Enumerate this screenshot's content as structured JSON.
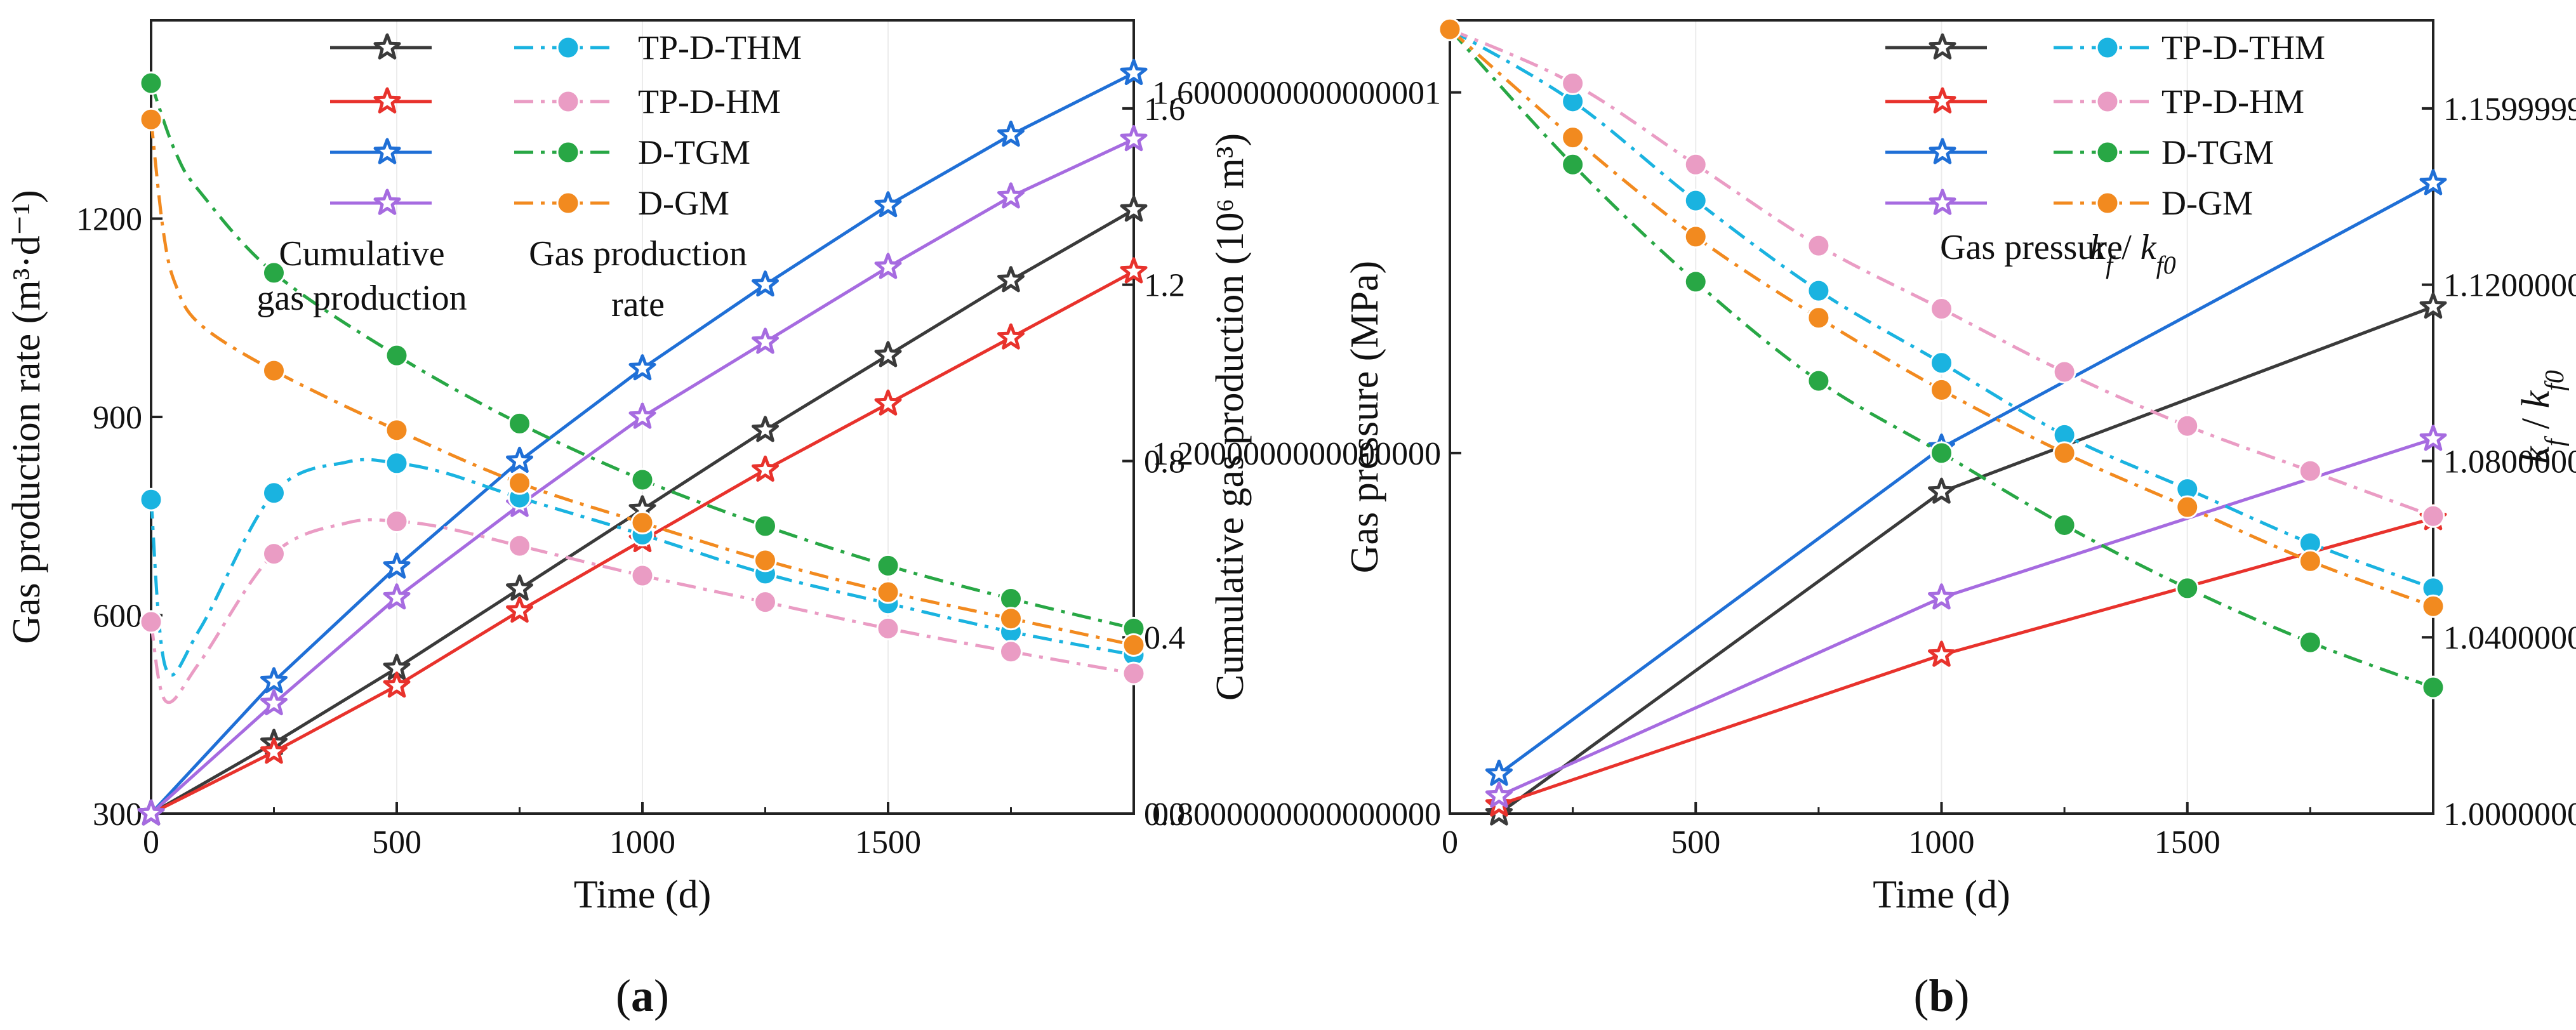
{
  "colors": {
    "black": "#3a3a3a",
    "red": "#e8322c",
    "blue": "#1f6fd6",
    "purple": "#a66be0",
    "cyan": "#1ab3e0",
    "pink": "#ea9cc4",
    "green": "#28a745",
    "orange": "#f28a1f"
  },
  "chart_data": [
    {
      "type": "line",
      "panel_label": "(a)",
      "xlabel": "Time (d)",
      "ylabel": "Gas production rate (m³·d⁻¹)",
      "y2label": "Cumulative gas production (10⁶ m³)",
      "xlim": [
        0,
        2000
      ],
      "ylim": [
        300,
        1500
      ],
      "y2lim": [
        0,
        1.8
      ],
      "xticks": [
        0,
        500,
        1000,
        1500
      ],
      "yticks": [
        300,
        600,
        900,
        1200
      ],
      "y2ticks": [
        0.0,
        0.4,
        0.8,
        1.2,
        1.6
      ],
      "annotations": [
        {
          "lines": [
            "Cumulative",
            "gas production"
          ]
        },
        {
          "lines": [
            "Gas production",
            "rate"
          ]
        }
      ],
      "legend": {
        "position": "top-center",
        "entries": [
          {
            "label": "",
            "color": "black",
            "marker": "star",
            "dash": "solid"
          },
          {
            "label": "",
            "color": "red",
            "marker": "star",
            "dash": "solid"
          },
          {
            "label": "",
            "color": "blue",
            "marker": "star",
            "dash": "solid"
          },
          {
            "label": "",
            "color": "purple",
            "marker": "star",
            "dash": "solid"
          },
          {
            "label": "TP-D-THM",
            "color": "cyan",
            "marker": "circle",
            "dash": "dashdot"
          },
          {
            "label": "TP-D-HM",
            "color": "pink",
            "marker": "circle",
            "dash": "dashdot"
          },
          {
            "label": "D-TGM",
            "color": "green",
            "marker": "circle",
            "dash": "dashdot"
          },
          {
            "label": "D-GM",
            "color": "orange",
            "marker": "circle",
            "dash": "dashdot"
          }
        ]
      },
      "series": [
        {
          "color": "black",
          "marker": "star",
          "dash": "solid",
          "axis": "y2",
          "x": [
            0,
            250,
            500,
            750,
            1000,
            1250,
            1500,
            1750,
            2000
          ],
          "values": [
            0,
            0.16,
            0.33,
            0.51,
            0.69,
            0.87,
            1.04,
            1.21,
            1.37
          ]
        },
        {
          "color": "red",
          "marker": "star",
          "dash": "solid",
          "axis": "y2",
          "x": [
            0,
            250,
            500,
            750,
            1000,
            1250,
            1500,
            1750,
            2000
          ],
          "values": [
            0,
            0.14,
            0.29,
            0.46,
            0.62,
            0.78,
            0.93,
            1.08,
            1.23
          ]
        },
        {
          "color": "blue",
          "marker": "star",
          "dash": "solid",
          "axis": "y2",
          "x": [
            0,
            250,
            500,
            750,
            1000,
            1250,
            1500,
            1750,
            2000
          ],
          "values": [
            0,
            0.3,
            0.56,
            0.8,
            1.01,
            1.2,
            1.38,
            1.54,
            1.68
          ]
        },
        {
          "color": "purple",
          "marker": "star",
          "dash": "solid",
          "axis": "y2",
          "x": [
            0,
            250,
            500,
            750,
            1000,
            1250,
            1500,
            1750,
            2000
          ],
          "values": [
            0,
            0.25,
            0.49,
            0.7,
            0.9,
            1.07,
            1.24,
            1.4,
            1.53
          ]
        },
        {
          "color": "cyan",
          "marker": "circle",
          "dash": "dashdot",
          "axis": "y",
          "x": [
            0,
            30,
            100,
            250,
            400,
            500,
            600,
            750,
            1000,
            1250,
            1500,
            1750,
            2000
          ],
          "values": [
            775,
            520,
            580,
            785,
            832,
            830,
            815,
            778,
            722,
            663,
            618,
            575,
            540
          ],
          "markers_x": [
            0,
            250,
            500,
            750,
            1000,
            1250,
            1500,
            1750,
            2000
          ]
        },
        {
          "color": "pink",
          "marker": "circle",
          "dash": "dashdot",
          "axis": "y",
          "x": [
            0,
            30,
            100,
            250,
            400,
            500,
            600,
            750,
            1000,
            1250,
            1500,
            1750,
            2000
          ],
          "values": [
            590,
            470,
            530,
            693,
            740,
            742,
            732,
            705,
            660,
            620,
            580,
            545,
            512
          ],
          "markers_x": [
            0,
            250,
            500,
            750,
            1000,
            1250,
            1500,
            1750,
            2000
          ]
        },
        {
          "color": "green",
          "marker": "circle",
          "dash": "dashdot",
          "axis": "y",
          "x": [
            0,
            50,
            100,
            250,
            500,
            750,
            1000,
            1250,
            1500,
            1750,
            2000
          ],
          "values": [
            1405,
            1300,
            1240,
            1118,
            993,
            890,
            805,
            735,
            675,
            625,
            580
          ],
          "markers_x": [
            0,
            250,
            500,
            750,
            1000,
            1250,
            1500,
            1750,
            2000
          ]
        },
        {
          "color": "orange",
          "marker": "circle",
          "dash": "dashdot",
          "axis": "y",
          "x": [
            0,
            25,
            50,
            100,
            250,
            500,
            750,
            1000,
            1250,
            1500,
            1750,
            2000
          ],
          "values": [
            1350,
            1180,
            1100,
            1040,
            970,
            880,
            800,
            740,
            683,
            635,
            595,
            555
          ],
          "markers_x": [
            0,
            250,
            500,
            750,
            1000,
            1250,
            1500,
            1750,
            2000
          ]
        }
      ]
    },
    {
      "type": "line",
      "panel_label": "(b)",
      "xlabel": "Time (d)",
      "ylabel": "Gas pressure (MPa)",
      "y2label": "k_f / k_f0",
      "xlim": [
        0,
        2000
      ],
      "ylim": [
        0.8,
        1.68
      ],
      "y2lim": [
        1.0,
        1.18
      ],
      "xticks": [
        0,
        500,
        1000,
        1500
      ],
      "yticks": [
        0.8,
        1.2,
        1.6
      ],
      "y2ticks": [
        1.0,
        1.04,
        1.08,
        1.12,
        1.16
      ],
      "annotations": [
        {
          "lines": [
            "Gas pressure"
          ]
        },
        {
          "lines": [
            "k_f / k_f0"
          ]
        }
      ],
      "legend": {
        "position": "top-right",
        "entries": [
          {
            "label": "",
            "color": "black",
            "marker": "star",
            "dash": "solid"
          },
          {
            "label": "",
            "color": "red",
            "marker": "star",
            "dash": "solid"
          },
          {
            "label": "",
            "color": "blue",
            "marker": "star",
            "dash": "solid"
          },
          {
            "label": "",
            "color": "purple",
            "marker": "star",
            "dash": "solid"
          },
          {
            "label": "TP-D-THM",
            "color": "cyan",
            "marker": "circle",
            "dash": "dashdot"
          },
          {
            "label": "TP-D-HM",
            "color": "pink",
            "marker": "circle",
            "dash": "dashdot"
          },
          {
            "label": "D-TGM",
            "color": "green",
            "marker": "circle",
            "dash": "dashdot"
          },
          {
            "label": "D-GM",
            "color": "orange",
            "marker": "circle",
            "dash": "dashdot"
          }
        ]
      },
      "series": [
        {
          "color": "black",
          "marker": "star",
          "dash": "solid",
          "axis": "y2",
          "x": [
            100,
            1000,
            2000
          ],
          "values": [
            1.0,
            1.073,
            1.115
          ]
        },
        {
          "color": "red",
          "marker": "star",
          "dash": "solid",
          "axis": "y2",
          "x": [
            100,
            1000,
            2000
          ],
          "values": [
            1.002,
            1.036,
            1.067
          ]
        },
        {
          "color": "blue",
          "marker": "star",
          "dash": "solid",
          "axis": "y2",
          "x": [
            100,
            1000,
            2000
          ],
          "values": [
            1.009,
            1.083,
            1.143
          ]
        },
        {
          "color": "purple",
          "marker": "star",
          "dash": "solid",
          "axis": "y2",
          "x": [
            100,
            1000,
            2000
          ],
          "values": [
            1.004,
            1.049,
            1.085
          ]
        },
        {
          "color": "cyan",
          "marker": "circle",
          "dash": "dashdot",
          "axis": "y",
          "x": [
            0,
            250,
            500,
            750,
            1000,
            1250,
            1500,
            1750,
            2000
          ],
          "values": [
            1.67,
            1.59,
            1.48,
            1.38,
            1.3,
            1.22,
            1.16,
            1.1,
            1.05
          ],
          "markers_x": [
            0,
            250,
            500,
            750,
            1000,
            1250,
            1500,
            1750,
            2000
          ]
        },
        {
          "color": "pink",
          "marker": "circle",
          "dash": "dashdot",
          "axis": "y",
          "x": [
            0,
            250,
            500,
            750,
            1000,
            1250,
            1500,
            1750,
            2000
          ],
          "values": [
            1.67,
            1.61,
            1.52,
            1.43,
            1.36,
            1.29,
            1.23,
            1.18,
            1.13
          ],
          "markers_x": [
            0,
            250,
            500,
            750,
            1000,
            1250,
            1500,
            1750,
            2000
          ]
        },
        {
          "color": "green",
          "marker": "circle",
          "dash": "dashdot",
          "axis": "y",
          "x": [
            0,
            250,
            500,
            750,
            1000,
            1250,
            1500,
            1750,
            2000
          ],
          "values": [
            1.67,
            1.52,
            1.39,
            1.28,
            1.2,
            1.12,
            1.05,
            0.99,
            0.94
          ],
          "markers_x": [
            0,
            250,
            500,
            750,
            1000,
            1250,
            1500,
            1750,
            2000
          ]
        },
        {
          "color": "orange",
          "marker": "circle",
          "dash": "dashdot",
          "axis": "y",
          "x": [
            0,
            250,
            500,
            750,
            1000,
            1250,
            1500,
            1750,
            2000
          ],
          "values": [
            1.67,
            1.55,
            1.44,
            1.35,
            1.27,
            1.2,
            1.14,
            1.08,
            1.03
          ],
          "markers_x": [
            0,
            250,
            500,
            750,
            1000,
            1250,
            1500,
            1750,
            2000
          ]
        }
      ]
    }
  ]
}
